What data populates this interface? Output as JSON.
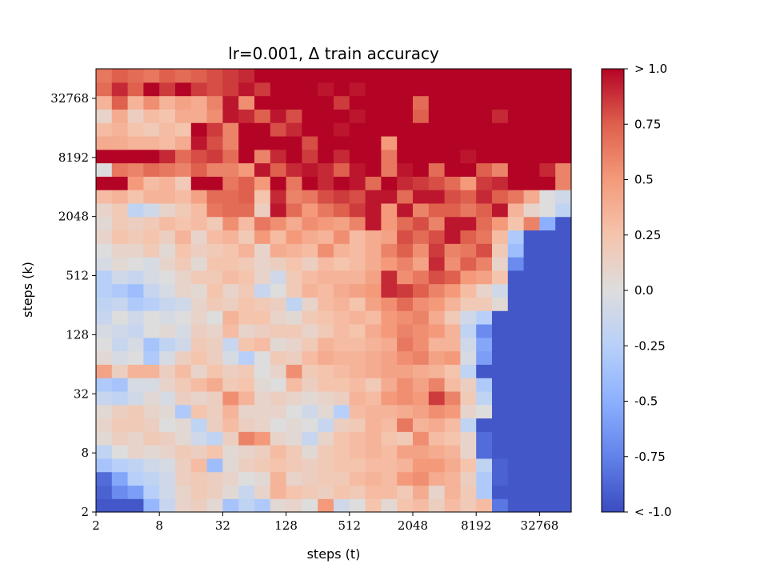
{
  "chart_data": {
    "type": "heatmap",
    "title": "lr=0.001, Δ train accuracy",
    "xlabel": "steps (t)",
    "ylabel": "steps (k)",
    "x_scale": "log2",
    "y_scale": "log2",
    "x_ticks": [
      "2",
      "8",
      "32",
      "128",
      "512",
      "2048",
      "8192",
      "32768"
    ],
    "y_ticks": [
      "2",
      "8",
      "32",
      "128",
      "512",
      "2048",
      "8192",
      "32768"
    ],
    "x_range": [
      2,
      65536
    ],
    "y_range": [
      2,
      65536
    ],
    "colormap": "coolwarm",
    "value_range": [
      -1.0,
      1.0
    ],
    "colorbar_ticks": [
      "< -1.0",
      "-0.75",
      "-0.5",
      "-0.25",
      "0.0",
      "0.25",
      "0.5",
      "0.75",
      "> 1.0"
    ],
    "grid": false,
    "rows": [
      [
        -0.95,
        -0.95,
        -0.95,
        -0.45,
        -0.15,
        0.1,
        0.15,
        0.05,
        -0.35,
        -0.2,
        -0.3,
        0.05,
        0.1,
        0.0,
        0.5,
        -0.1,
        0.0,
        0.25,
        0.05,
        0.25,
        0.3,
        0.15,
        0.3,
        0.2,
        0.3,
        -0.8,
        -0.95,
        -0.95,
        -0.95,
        -0.95
      ],
      [
        -0.9,
        -0.7,
        -0.6,
        -0.25,
        -0.1,
        0.1,
        0.2,
        0.15,
        0.05,
        -0.15,
        0.1,
        0.35,
        0.25,
        0.2,
        0.15,
        0.25,
        0.2,
        0.3,
        0.3,
        0.2,
        0.4,
        0.1,
        0.35,
        0.2,
        -0.3,
        -0.95,
        -0.95,
        -0.95,
        -0.95,
        -0.95
      ],
      [
        -0.85,
        -0.55,
        -0.25,
        -0.2,
        -0.1,
        0.15,
        0.2,
        0.15,
        0.1,
        0.0,
        0.05,
        0.35,
        0.1,
        0.15,
        0.2,
        0.2,
        0.3,
        0.35,
        0.3,
        0.5,
        0.55,
        0.4,
        0.35,
        0.15,
        -0.3,
        -0.9,
        -0.95,
        -0.95,
        -0.95,
        -0.95
      ],
      [
        -0.35,
        -0.25,
        -0.2,
        -0.1,
        -0.05,
        0.15,
        0.3,
        -0.4,
        0.05,
        0.15,
        0.2,
        0.25,
        0.2,
        0.15,
        0.2,
        0.25,
        0.25,
        0.3,
        0.3,
        0.35,
        0.5,
        0.5,
        0.4,
        0.25,
        -0.2,
        -0.9,
        -0.95,
        -0.95,
        -0.95,
        -0.95
      ],
      [
        -0.2,
        0.0,
        0.1,
        0.05,
        0.1,
        0.2,
        0.15,
        0.25,
        0.05,
        0.1,
        0.15,
        0.3,
        0.2,
        0.05,
        0.2,
        0.25,
        0.3,
        0.35,
        0.3,
        0.45,
        0.45,
        0.4,
        0.35,
        0.1,
        -0.85,
        -0.95,
        -0.95,
        -0.95,
        -0.95,
        -0.95
      ],
      [
        0.05,
        0.15,
        0.1,
        0.2,
        0.15,
        0.05,
        -0.1,
        -0.2,
        0.15,
        0.6,
        0.5,
        0.1,
        0.05,
        -0.15,
        0.1,
        0.25,
        0.3,
        0.35,
        0.25,
        0.2,
        0.55,
        0.3,
        0.25,
        0.1,
        -0.85,
        -0.95,
        -0.95,
        -0.95,
        -0.95,
        -0.95
      ],
      [
        0.1,
        0.2,
        0.2,
        0.15,
        0.0,
        0.05,
        -0.2,
        0.15,
        0.3,
        0.15,
        0.1,
        0.0,
        0.05,
        0.0,
        -0.15,
        0.15,
        0.2,
        0.35,
        0.3,
        0.65,
        0.35,
        0.4,
        0.3,
        -0.2,
        -0.95,
        -0.95,
        -0.95,
        -0.95,
        -0.95,
        -0.95
      ],
      [
        0.05,
        0.15,
        0.2,
        0.1,
        0.05,
        -0.3,
        0.25,
        0.15,
        0.35,
        0.1,
        0.1,
        0.1,
        0.0,
        -0.1,
        0.05,
        -0.25,
        0.3,
        0.35,
        0.35,
        0.4,
        0.45,
        0.55,
        0.5,
        0.1,
        0.0,
        -0.95,
        -0.95,
        -0.95,
        -0.95,
        -0.95
      ],
      [
        -0.15,
        -0.2,
        -0.1,
        0.05,
        -0.05,
        0.15,
        0.1,
        0.15,
        0.55,
        0.35,
        0.1,
        0.15,
        0.1,
        0.05,
        0.1,
        0.15,
        0.35,
        0.3,
        0.5,
        0.55,
        0.5,
        0.85,
        0.6,
        0.2,
        -0.2,
        -0.95,
        -0.95,
        -0.95,
        -0.95,
        -0.95
      ],
      [
        -0.3,
        -0.35,
        -0.05,
        -0.05,
        0.1,
        0.2,
        0.3,
        0.4,
        0.2,
        0.25,
        0.05,
        0.0,
        0.3,
        0.15,
        0.25,
        0.25,
        0.3,
        0.2,
        0.4,
        0.55,
        0.45,
        0.6,
        0.3,
        0.15,
        -0.3,
        -0.95,
        -0.95,
        -0.95,
        -0.95,
        -0.95
      ],
      [
        0.45,
        0.15,
        0.35,
        0.35,
        0.15,
        0.3,
        0.1,
        0.25,
        0.15,
        0.2,
        0.0,
        0.1,
        0.55,
        0.2,
        0.25,
        0.3,
        0.35,
        0.4,
        0.45,
        0.45,
        0.4,
        0.35,
        0.25,
        -0.2,
        -0.95,
        -0.95,
        -0.95,
        -0.95,
        -0.95,
        -0.95
      ],
      [
        0.05,
        -0.05,
        0.0,
        -0.3,
        -0.05,
        0.15,
        0.25,
        0.15,
        -0.05,
        -0.25,
        0.0,
        0.2,
        0.15,
        0.3,
        0.4,
        0.35,
        0.35,
        0.4,
        0.45,
        0.55,
        0.6,
        0.45,
        0.5,
        -0.05,
        -0.6,
        -0.95,
        -0.95,
        -0.95,
        -0.95,
        -0.95
      ],
      [
        0.0,
        -0.15,
        -0.05,
        -0.35,
        -0.2,
        -0.1,
        0.2,
        0.15,
        -0.15,
        0.25,
        0.3,
        0.05,
        0.1,
        0.2,
        0.35,
        0.3,
        0.3,
        0.35,
        0.4,
        0.65,
        0.55,
        0.35,
        0.35,
        -0.1,
        -0.55,
        -0.95,
        -0.95,
        -0.95,
        -0.95,
        -0.95
      ],
      [
        -0.05,
        -0.1,
        -0.15,
        0.0,
        0.05,
        -0.05,
        0.15,
        0.1,
        0.3,
        0.1,
        0.15,
        0.2,
        0.2,
        0.1,
        0.2,
        0.3,
        0.25,
        0.4,
        0.5,
        0.6,
        0.55,
        0.5,
        0.35,
        -0.2,
        -0.7,
        -0.95,
        -0.95,
        -0.95,
        -0.95,
        -0.95
      ],
      [
        -0.15,
        0.0,
        -0.1,
        0.0,
        -0.05,
        0.0,
        0.1,
        0.0,
        0.35,
        0.25,
        0.25,
        0.1,
        0.05,
        0.2,
        0.25,
        0.3,
        0.35,
        0.3,
        0.5,
        0.55,
        0.6,
        0.4,
        0.2,
        -0.1,
        -0.25,
        -0.95,
        -0.95,
        -0.95,
        -0.95,
        -0.95
      ],
      [
        -0.2,
        -0.15,
        -0.3,
        -0.25,
        -0.15,
        -0.1,
        0.1,
        0.2,
        0.15,
        0.25,
        0.2,
        0.15,
        -0.2,
        0.1,
        0.3,
        0.35,
        0.25,
        0.45,
        0.55,
        0.7,
        0.55,
        0.5,
        0.35,
        0.2,
        0.2,
        0.05,
        -0.95,
        -0.95,
        -0.95,
        -0.95
      ],
      [
        -0.25,
        -0.3,
        -0.4,
        -0.15,
        -0.05,
        0.1,
        0.05,
        0.25,
        0.1,
        0.2,
        -0.15,
        0.0,
        0.2,
        0.35,
        0.3,
        0.4,
        0.45,
        0.5,
        0.9,
        0.85,
        0.75,
        0.6,
        0.5,
        0.3,
        0.1,
        -0.1,
        -0.95,
        -0.95,
        -0.95,
        -0.95
      ],
      [
        -0.25,
        -0.1,
        -0.15,
        -0.05,
        0.0,
        0.1,
        0.2,
        0.2,
        0.3,
        0.25,
        0.1,
        -0.1,
        0.2,
        0.3,
        0.35,
        0.35,
        0.35,
        0.45,
        0.9,
        0.55,
        0.65,
        0.8,
        0.75,
        0.5,
        0.45,
        0.25,
        -0.95,
        -0.95,
        -0.95,
        -0.95
      ],
      [
        -0.05,
        0.05,
        0.0,
        -0.05,
        0.1,
        0.2,
        0.05,
        0.25,
        0.25,
        0.2,
        0.1,
        0.15,
        0.25,
        0.15,
        0.3,
        0.25,
        0.3,
        0.4,
        0.5,
        0.6,
        0.45,
        0.9,
        0.55,
        0.75,
        0.6,
        0.1,
        -0.7,
        -0.95,
        -0.95,
        -0.95
      ],
      [
        0.0,
        0.1,
        0.1,
        0.2,
        0.05,
        0.25,
        0.15,
        0.2,
        0.25,
        0.35,
        0.1,
        0.4,
        0.35,
        0.3,
        0.55,
        0.35,
        0.3,
        0.4,
        0.6,
        0.75,
        0.55,
        0.85,
        0.6,
        0.65,
        0.8,
        0.2,
        -0.4,
        -0.95,
        -0.95,
        -0.95
      ],
      [
        0.1,
        0.25,
        0.2,
        0.25,
        0.15,
        0.35,
        0.1,
        0.3,
        0.35,
        0.2,
        0.5,
        0.3,
        0.5,
        0.4,
        0.35,
        0.55,
        0.3,
        0.4,
        0.45,
        0.8,
        0.7,
        0.8,
        0.95,
        0.75,
        0.65,
        0.3,
        -0.3,
        -0.95,
        -0.95,
        -0.95
      ],
      [
        0.05,
        0.2,
        0.15,
        0.2,
        0.3,
        0.25,
        0.3,
        0.2,
        0.55,
        0.3,
        0.65,
        0.55,
        0.4,
        0.55,
        0.5,
        0.45,
        0.6,
        0.95,
        0.5,
        0.7,
        0.8,
        0.6,
        0.95,
        0.95,
        0.7,
        0.5,
        0.25,
        0.6,
        -0.5,
        -0.95
      ],
      [
        0.1,
        0.2,
        -0.2,
        -0.1,
        0.1,
        0.2,
        0.3,
        0.65,
        0.7,
        0.7,
        0.15,
        0.95,
        0.7,
        0.5,
        0.65,
        0.75,
        0.85,
        0.95,
        0.5,
        0.95,
        0.6,
        0.75,
        0.75,
        0.65,
        0.75,
        0.95,
        0.35,
        0.1,
        0.0,
        -0.2
      ],
      [
        0.3,
        0.35,
        0.25,
        0.35,
        0.35,
        0.3,
        0.45,
        0.7,
        0.7,
        0.75,
        0.25,
        0.9,
        0.6,
        0.65,
        0.8,
        0.85,
        0.8,
        0.95,
        0.95,
        0.7,
        0.95,
        0.95,
        0.8,
        0.75,
        0.9,
        0.75,
        0.65,
        0.4,
        0.0,
        -0.1
      ],
      [
        1.0,
        1.0,
        0.5,
        0.3,
        0.35,
        0.2,
        1.0,
        1.0,
        0.65,
        0.75,
        0.5,
        1.0,
        0.65,
        1.0,
        0.9,
        1.0,
        0.95,
        0.7,
        1.0,
        0.9,
        0.85,
        0.8,
        0.7,
        0.5,
        0.85,
        0.9,
        1.0,
        1.0,
        1.0,
        0.6
      ],
      [
        0.0,
        0.65,
        0.6,
        0.7,
        0.65,
        0.6,
        0.75,
        0.6,
        0.6,
        0.5,
        0.95,
        0.75,
        0.9,
        0.95,
        0.9,
        0.75,
        0.95,
        1.0,
        0.65,
        0.95,
        1.0,
        0.7,
        1.0,
        1.0,
        0.75,
        0.6,
        1.0,
        1.0,
        0.9,
        0.6
      ],
      [
        1.0,
        1.0,
        1.0,
        1.0,
        0.9,
        0.7,
        0.8,
        0.85,
        0.7,
        1.0,
        0.6,
        0.9,
        1.0,
        0.85,
        1.0,
        0.9,
        1.0,
        1.0,
        0.65,
        1.0,
        1.0,
        1.0,
        1.0,
        0.95,
        1.0,
        1.0,
        1.0,
        1.0,
        1.0,
        1.0
      ],
      [
        0.4,
        0.4,
        0.35,
        0.35,
        0.3,
        0.4,
        0.95,
        0.8,
        0.6,
        1.0,
        1.0,
        1.0,
        1.0,
        0.8,
        1.0,
        1.0,
        1.0,
        1.0,
        0.5,
        1.0,
        1.0,
        1.0,
        1.0,
        1.0,
        1.0,
        1.0,
        1.0,
        1.0,
        1.0,
        1.0
      ],
      [
        0.3,
        0.35,
        0.25,
        0.2,
        0.3,
        0.25,
        1.0,
        0.85,
        0.6,
        1.0,
        1.0,
        0.8,
        0.9,
        1.0,
        1.0,
        0.95,
        1.0,
        1.0,
        1.0,
        1.0,
        1.0,
        1.0,
        1.0,
        1.0,
        1.0,
        1.0,
        1.0,
        1.0,
        1.0,
        1.0
      ],
      [
        0.1,
        0.4,
        0.15,
        0.3,
        0.25,
        0.4,
        0.4,
        0.55,
        0.95,
        0.9,
        0.75,
        0.95,
        0.8,
        1.0,
        1.0,
        1.0,
        0.95,
        1.0,
        1.0,
        1.0,
        0.75,
        1.0,
        1.0,
        1.0,
        1.0,
        0.9,
        1.0,
        1.0,
        1.0,
        1.0
      ],
      [
        0.35,
        0.75,
        0.35,
        0.55,
        0.35,
        0.45,
        0.4,
        0.6,
        0.95,
        0.55,
        1.0,
        1.0,
        1.0,
        1.0,
        1.0,
        0.85,
        1.0,
        1.0,
        1.0,
        1.0,
        0.7,
        1.0,
        1.0,
        1.0,
        1.0,
        1.0,
        1.0,
        1.0,
        1.0,
        1.0
      ],
      [
        0.7,
        0.9,
        0.75,
        1.0,
        0.85,
        1.0,
        0.85,
        0.8,
        0.85,
        0.95,
        0.85,
        1.0,
        1.0,
        1.0,
        0.95,
        1.0,
        0.95,
        1.0,
        1.0,
        1.0,
        1.0,
        1.0,
        1.0,
        1.0,
        1.0,
        1.0,
        1.0,
        1.0,
        1.0,
        1.0
      ],
      [
        0.65,
        0.75,
        0.7,
        0.65,
        0.75,
        0.7,
        0.75,
        0.8,
        0.85,
        0.9,
        1.0,
        1.0,
        1.0,
        1.0,
        1.0,
        1.0,
        1.0,
        1.0,
        1.0,
        1.0,
        1.0,
        1.0,
        1.0,
        1.0,
        1.0,
        1.0,
        1.0,
        1.0,
        1.0,
        1.0
      ]
    ]
  }
}
